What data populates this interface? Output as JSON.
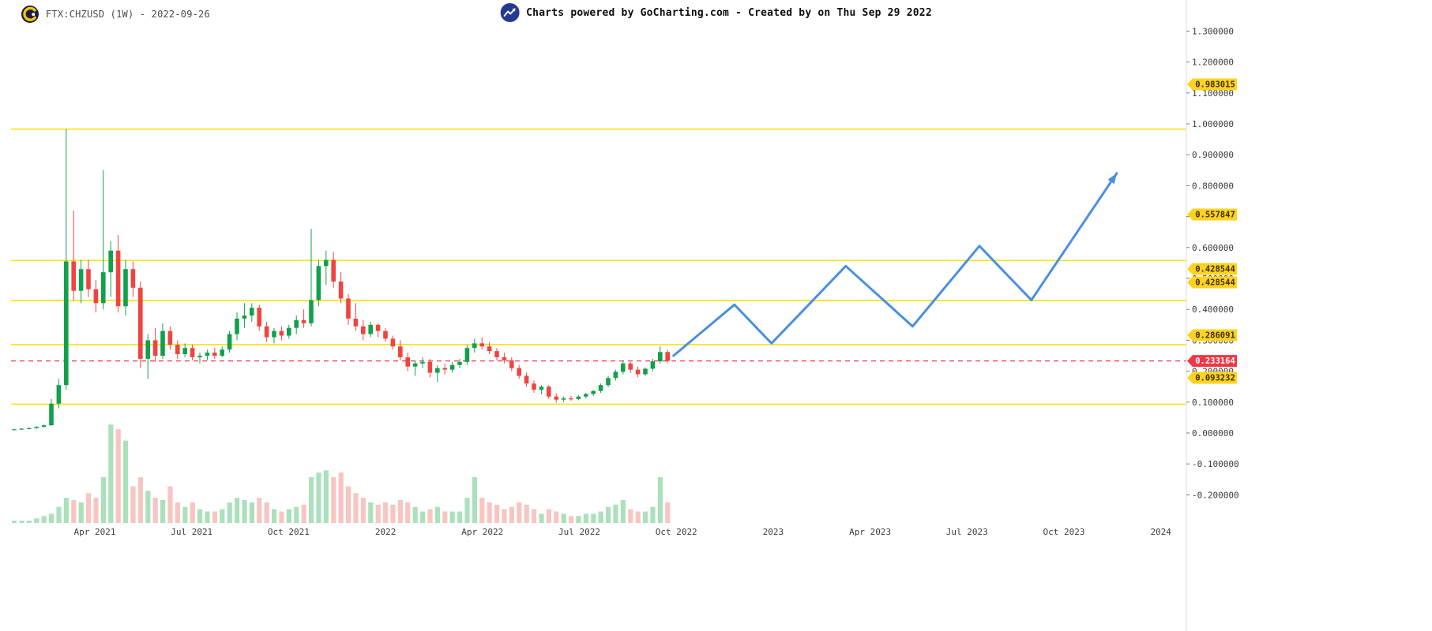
{
  "header": {
    "symbol_label": "FTX:CHZUSD (1W) - 2022-09-26",
    "attribution": "Charts powered by GoCharting.com - Created by  on Thu Sep 29 2022"
  },
  "chart_data": {
    "type": "candlestick",
    "symbol": "FTX:CHZUSD",
    "interval": "1W",
    "as_of_date": "2022-09-26",
    "title": "FTX:CHZUSD (1W) - 2022-09-26",
    "x_axis": {
      "labels": [
        "Apr 2021",
        "Jul 2021",
        "Oct 2021",
        "2022",
        "Apr 2022",
        "Jul 2022",
        "Oct 2022",
        "2023",
        "Apr 2023",
        "Jul 2023",
        "Oct 2023",
        "2024"
      ]
    },
    "y_axis": {
      "min": -0.2,
      "max": 1.3,
      "step": 0.1,
      "decimals": 6,
      "tick_labels": [
        "1.300000",
        "1.200000",
        "1.100000",
        "1.000000",
        "0.900000",
        "0.800000",
        "0.700000",
        "0.600000",
        "0.500000",
        "0.400000",
        "0.300000",
        "0.200000",
        "0.100000",
        "0.000000",
        "-0.100000",
        "-0.200000"
      ]
    },
    "grid": "off",
    "horizontal_lines": [
      {
        "price": 0.983015,
        "label": "0.983015"
      },
      {
        "price": 0.557847,
        "label": "0.557847"
      },
      {
        "price": 0.428544,
        "label": "0.428544"
      },
      {
        "price": 0.428544,
        "label": "0.428544"
      },
      {
        "price": 0.286091,
        "label": "0.286091"
      },
      {
        "price": 0.093232,
        "label": "0.093232"
      }
    ],
    "current_price": {
      "value": 0.233164,
      "label": "0.233164"
    },
    "candles_ohlcv": [
      [
        0.01,
        0.014,
        0.009,
        0.012,
        1
      ],
      [
        0.012,
        0.016,
        0.011,
        0.014,
        1
      ],
      [
        0.014,
        0.018,
        0.012,
        0.016,
        1
      ],
      [
        0.016,
        0.022,
        0.014,
        0.02,
        2
      ],
      [
        0.02,
        0.028,
        0.018,
        0.025,
        3
      ],
      [
        0.025,
        0.11,
        0.024,
        0.095,
        4
      ],
      [
        0.095,
        0.175,
        0.08,
        0.155,
        7
      ],
      [
        0.155,
        0.983,
        0.14,
        0.555,
        11
      ],
      [
        0.555,
        0.72,
        0.43,
        0.46,
        10
      ],
      [
        0.46,
        0.56,
        0.42,
        0.53,
        9
      ],
      [
        0.53,
        0.56,
        0.44,
        0.465,
        13
      ],
      [
        0.465,
        0.495,
        0.39,
        0.42,
        11
      ],
      [
        0.42,
        0.85,
        0.4,
        0.52,
        20
      ],
      [
        0.52,
        0.62,
        0.44,
        0.59,
        43
      ],
      [
        0.59,
        0.64,
        0.39,
        0.41,
        41
      ],
      [
        0.41,
        0.56,
        0.38,
        0.53,
        36
      ],
      [
        0.53,
        0.555,
        0.44,
        0.47,
        16
      ],
      [
        0.47,
        0.49,
        0.21,
        0.24,
        20
      ],
      [
        0.24,
        0.32,
        0.175,
        0.3,
        14
      ],
      [
        0.3,
        0.34,
        0.23,
        0.25,
        11
      ],
      [
        0.25,
        0.355,
        0.24,
        0.33,
        10
      ],
      [
        0.33,
        0.345,
        0.27,
        0.285,
        16
      ],
      [
        0.285,
        0.3,
        0.24,
        0.255,
        9
      ],
      [
        0.255,
        0.29,
        0.245,
        0.275,
        7
      ],
      [
        0.275,
        0.285,
        0.235,
        0.245,
        9
      ],
      [
        0.245,
        0.26,
        0.225,
        0.25,
        6
      ],
      [
        0.25,
        0.27,
        0.235,
        0.26,
        5
      ],
      [
        0.26,
        0.275,
        0.24,
        0.25,
        5
      ],
      [
        0.25,
        0.28,
        0.245,
        0.27,
        6
      ],
      [
        0.27,
        0.33,
        0.26,
        0.32,
        9
      ],
      [
        0.32,
        0.39,
        0.3,
        0.37,
        11
      ],
      [
        0.37,
        0.42,
        0.34,
        0.38,
        10
      ],
      [
        0.38,
        0.42,
        0.36,
        0.405,
        9
      ],
      [
        0.405,
        0.415,
        0.33,
        0.345,
        11
      ],
      [
        0.345,
        0.36,
        0.295,
        0.31,
        9
      ],
      [
        0.31,
        0.34,
        0.29,
        0.33,
        6
      ],
      [
        0.33,
        0.345,
        0.3,
        0.315,
        5
      ],
      [
        0.315,
        0.35,
        0.305,
        0.34,
        6
      ],
      [
        0.34,
        0.38,
        0.32,
        0.365,
        7
      ],
      [
        0.365,
        0.4,
        0.34,
        0.355,
        8
      ],
      [
        0.355,
        0.66,
        0.345,
        0.43,
        20
      ],
      [
        0.43,
        0.56,
        0.41,
        0.54,
        22
      ],
      [
        0.54,
        0.59,
        0.48,
        0.56,
        23
      ],
      [
        0.56,
        0.585,
        0.47,
        0.49,
        20
      ],
      [
        0.49,
        0.52,
        0.42,
        0.435,
        22
      ],
      [
        0.435,
        0.45,
        0.35,
        0.37,
        16
      ],
      [
        0.37,
        0.42,
        0.33,
        0.345,
        13
      ],
      [
        0.345,
        0.365,
        0.3,
        0.32,
        11
      ],
      [
        0.32,
        0.36,
        0.31,
        0.35,
        9
      ],
      [
        0.35,
        0.355,
        0.31,
        0.33,
        8
      ],
      [
        0.33,
        0.34,
        0.295,
        0.305,
        9
      ],
      [
        0.305,
        0.315,
        0.27,
        0.28,
        8
      ],
      [
        0.28,
        0.3,
        0.235,
        0.245,
        10
      ],
      [
        0.245,
        0.26,
        0.2,
        0.215,
        9
      ],
      [
        0.215,
        0.235,
        0.185,
        0.225,
        7
      ],
      [
        0.225,
        0.245,
        0.21,
        0.23,
        5
      ],
      [
        0.23,
        0.24,
        0.18,
        0.195,
        6
      ],
      [
        0.195,
        0.22,
        0.165,
        0.21,
        7
      ],
      [
        0.21,
        0.225,
        0.19,
        0.205,
        5
      ],
      [
        0.205,
        0.23,
        0.195,
        0.22,
        5
      ],
      [
        0.22,
        0.24,
        0.21,
        0.23,
        5
      ],
      [
        0.23,
        0.285,
        0.22,
        0.275,
        11
      ],
      [
        0.275,
        0.305,
        0.26,
        0.29,
        20
      ],
      [
        0.29,
        0.31,
        0.27,
        0.28,
        11
      ],
      [
        0.28,
        0.295,
        0.255,
        0.265,
        9
      ],
      [
        0.265,
        0.275,
        0.235,
        0.245,
        8
      ],
      [
        0.245,
        0.26,
        0.225,
        0.235,
        6
      ],
      [
        0.235,
        0.245,
        0.2,
        0.21,
        7
      ],
      [
        0.21,
        0.22,
        0.175,
        0.185,
        9
      ],
      [
        0.185,
        0.195,
        0.15,
        0.16,
        8
      ],
      [
        0.16,
        0.17,
        0.13,
        0.14,
        6
      ],
      [
        0.14,
        0.155,
        0.125,
        0.15,
        4
      ],
      [
        0.15,
        0.155,
        0.11,
        0.118,
        6
      ],
      [
        0.118,
        0.128,
        0.098,
        0.108,
        5
      ],
      [
        0.108,
        0.118,
        0.1,
        0.112,
        4
      ],
      [
        0.112,
        0.12,
        0.104,
        0.11,
        3
      ],
      [
        0.11,
        0.122,
        0.106,
        0.118,
        3
      ],
      [
        0.118,
        0.13,
        0.112,
        0.126,
        4
      ],
      [
        0.126,
        0.14,
        0.12,
        0.136,
        4
      ],
      [
        0.136,
        0.16,
        0.13,
        0.155,
        5
      ],
      [
        0.155,
        0.185,
        0.148,
        0.178,
        7
      ],
      [
        0.178,
        0.205,
        0.17,
        0.198,
        8
      ],
      [
        0.198,
        0.235,
        0.19,
        0.225,
        10
      ],
      [
        0.225,
        0.23,
        0.195,
        0.205,
        6
      ],
      [
        0.205,
        0.215,
        0.18,
        0.19,
        5
      ],
      [
        0.19,
        0.212,
        0.185,
        0.208,
        5
      ],
      [
        0.208,
        0.24,
        0.2,
        0.232,
        7
      ],
      [
        0.232,
        0.28,
        0.225,
        0.262,
        20
      ],
      [
        0.262,
        0.268,
        0.228,
        0.233,
        9
      ]
    ],
    "projection_trendline": {
      "description": "blue forecast zigzag with arrow, from Oct 2022 to late 2023",
      "points_week_price": [
        [
          88.8,
          0.25
        ],
        [
          97,
          0.415
        ],
        [
          102,
          0.29
        ],
        [
          112,
          0.54
        ],
        [
          121,
          0.345
        ],
        [
          130,
          0.605
        ],
        [
          137,
          0.43
        ],
        [
          148.5,
          0.84
        ]
      ]
    }
  },
  "colors": {
    "up": "#12a04c",
    "down": "#ef4440",
    "vol_up": "#abe0bd",
    "vol_down": "#f7c5c2",
    "level_line": "#ffe115",
    "badge_bg": "#ffd21e",
    "badge_text": "#3b3000",
    "current_line": "#f23645",
    "current_badge_text": "#ffffff",
    "projection": "#4a8fe2",
    "axis_text": "#3c3c3c",
    "axis_line": "#dcdcdc",
    "tick": "#7a7a7a"
  }
}
